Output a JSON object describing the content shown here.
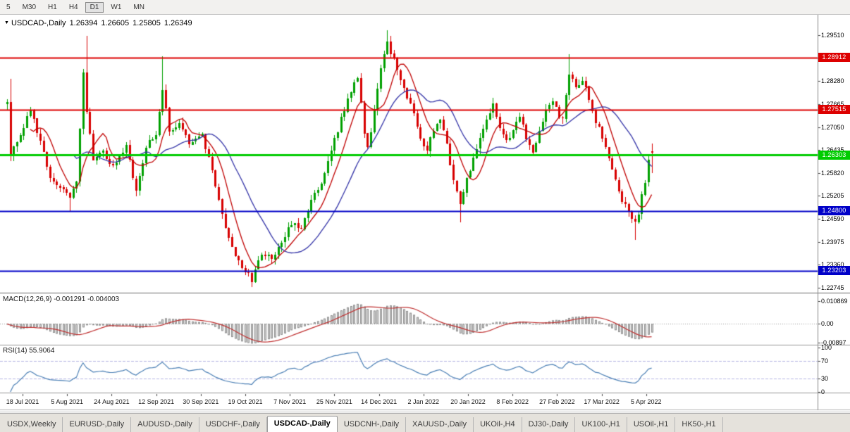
{
  "toolbar": {
    "timeframes": [
      {
        "label": "5",
        "active": false
      },
      {
        "label": "M30",
        "active": false
      },
      {
        "label": "H1",
        "active": false
      },
      {
        "label": "H4",
        "active": false
      },
      {
        "label": "D1",
        "active": true
      },
      {
        "label": "W1",
        "active": false
      },
      {
        "label": "MN",
        "active": false
      }
    ]
  },
  "icons": {
    "symbol_marker": "▼"
  },
  "chart_header": {
    "title": "USDCAD-,Daily",
    "open": "1.26394",
    "high": "1.26605",
    "low": "1.25805",
    "close": "1.26349"
  },
  "indicators": {
    "macd_label": "MACD(12,26,9) -0.001291 -0.004003",
    "rsi_label": "RSI(14) 55.9064"
  },
  "axes": {
    "price_ticks": [
      "1.29510",
      "1.28895",
      "1.28280",
      "1.27665",
      "1.27050",
      "1.26435",
      "1.25820",
      "1.25205",
      "1.24590",
      "1.23975",
      "1.23360",
      "1.22745"
    ],
    "macd_ticks": [
      "0.010869",
      "0.00",
      "-0.00897"
    ],
    "rsi_ticks": [
      "100",
      "70",
      "30",
      "0"
    ],
    "dates": [
      "18 Jul 2021",
      "5 Aug 2021",
      "24 Aug 2021",
      "12 Sep 2021",
      "30 Sep 2021",
      "19 Oct 2021",
      "7 Nov 2021",
      "25 Nov 2021",
      "14 Dec 2021",
      "2 Jan 2022",
      "20 Jan 2022",
      "8 Feb 2022",
      "27 Feb 2022",
      "17 Mar 2022",
      "5 Apr 2022"
    ]
  },
  "levels": [
    {
      "price": 1.28912,
      "label": "1.28912",
      "color": "#dd0000",
      "width": 2
    },
    {
      "price": 1.27515,
      "label": "1.27515",
      "color": "#dd0000",
      "width": 2
    },
    {
      "price": 1.26303,
      "label": "1.26303",
      "color": "#00cc00",
      "width": 3
    },
    {
      "price": 1.248,
      "label": "1.24800",
      "color": "#0000c8",
      "width": 2
    },
    {
      "price": 1.23203,
      "label": "1.23203",
      "color": "#0000c8",
      "width": 2
    }
  ],
  "tabs": [
    {
      "label": "USDX,Weekly",
      "active": false
    },
    {
      "label": "EURUSD-,Daily",
      "active": false
    },
    {
      "label": "AUDUSD-,Daily",
      "active": false
    },
    {
      "label": "USDCHF-,Daily",
      "active": false
    },
    {
      "label": "USDCAD-,Daily",
      "active": true
    },
    {
      "label": "USDCNH-,Daily",
      "active": false
    },
    {
      "label": "XAUUSD-,Daily",
      "active": false
    },
    {
      "label": "UKOil-,H4",
      "active": false
    },
    {
      "label": "DJ30-,Daily",
      "active": false
    },
    {
      "label": "UK100-,H1",
      "active": false
    },
    {
      "label": "USOil-,H1",
      "active": false
    },
    {
      "label": "HK50-,H1",
      "active": false
    }
  ],
  "colors": {
    "up": "#00a000",
    "down": "#d80000",
    "ma_fast": "#c00000",
    "ma_slow": "#3434a8",
    "macd_bar_fill": "#d2d2d2",
    "macd_bar_border": "#8f8f8f",
    "macd_signal": "#c03030",
    "rsi_line": "#4a7fb5",
    "rsi_level": "#b6b6e4"
  },
  "chart_data": {
    "type": "candlestick",
    "symbol": "USDCAD",
    "timeframe": "Daily",
    "title": "USDCAD-,Daily",
    "ylim": [
      1.2261,
      1.3008
    ],
    "candle_count": 196,
    "close_anchors": [
      [
        0,
        1.277
      ],
      [
        1,
        1.2625
      ],
      [
        4,
        1.269
      ],
      [
        7,
        1.275
      ],
      [
        10,
        1.2665
      ],
      [
        13,
        1.257
      ],
      [
        16,
        1.2545
      ],
      [
        19,
        1.252
      ],
      [
        21,
        1.256
      ],
      [
        23,
        1.285
      ],
      [
        24,
        1.275
      ],
      [
        26,
        1.262
      ],
      [
        29,
        1.2645
      ],
      [
        31,
        1.26
      ],
      [
        33,
        1.2615
      ],
      [
        36,
        1.2655
      ],
      [
        39,
        1.253
      ],
      [
        42,
        1.265
      ],
      [
        45,
        1.269
      ],
      [
        47,
        1.281
      ],
      [
        49,
        1.269
      ],
      [
        52,
        1.272
      ],
      [
        55,
        1.2655
      ],
      [
        59,
        1.268
      ],
      [
        62,
        1.259
      ],
      [
        65,
        1.247
      ],
      [
        68,
        1.2385
      ],
      [
        71,
        1.233
      ],
      [
        74,
        1.2295
      ],
      [
        77,
        1.237
      ],
      [
        80,
        1.235
      ],
      [
        83,
        1.239
      ],
      [
        86,
        1.245
      ],
      [
        89,
        1.244
      ],
      [
        92,
        1.2505
      ],
      [
        95,
        1.256
      ],
      [
        98,
        1.264
      ],
      [
        101,
        1.2725
      ],
      [
        104,
        1.2805
      ],
      [
        106,
        1.284
      ],
      [
        108,
        1.269
      ],
      [
        109,
        1.2645
      ],
      [
        111,
        1.275
      ],
      [
        113,
        1.286
      ],
      [
        115,
        1.293
      ],
      [
        117,
        1.288
      ],
      [
        119,
        1.283
      ],
      [
        121,
        1.279
      ],
      [
        123,
        1.274
      ],
      [
        125,
        1.268
      ],
      [
        127,
        1.264
      ],
      [
        129,
        1.27
      ],
      [
        131,
        1.2725
      ],
      [
        133,
        1.266
      ],
      [
        135,
        1.256
      ],
      [
        137,
        1.2505
      ],
      [
        139,
        1.257
      ],
      [
        141,
        1.2615
      ],
      [
        143,
        1.268
      ],
      [
        145,
        1.272
      ],
      [
        147,
        1.277
      ],
      [
        149,
        1.27
      ],
      [
        151,
        1.2665
      ],
      [
        153,
        1.27
      ],
      [
        155,
        1.273
      ],
      [
        157,
        1.268
      ],
      [
        159,
        1.264
      ],
      [
        161,
        1.27
      ],
      [
        163,
        1.275
      ],
      [
        165,
        1.277
      ],
      [
        166,
        1.2755
      ],
      [
        168,
        1.272
      ],
      [
        170,
        1.285
      ],
      [
        172,
        1.281
      ],
      [
        174,
        1.283
      ],
      [
        176,
        1.278
      ],
      [
        178,
        1.272
      ],
      [
        180,
        1.268
      ],
      [
        182,
        1.262
      ],
      [
        184,
        1.256
      ],
      [
        186,
        1.251
      ],
      [
        188,
        1.248
      ],
      [
        190,
        1.245
      ],
      [
        191,
        1.2475
      ],
      [
        192,
        1.252
      ],
      [
        193,
        1.256
      ],
      [
        194,
        1.261
      ],
      [
        195,
        1.26349
      ]
    ],
    "wick_highs": [
      [
        1,
        1.2835
      ],
      [
        24,
        1.2949
      ],
      [
        47,
        1.2895
      ],
      [
        115,
        1.2964
      ],
      [
        170,
        1.29
      ]
    ],
    "wick_lows": [
      [
        19,
        1.2478
      ],
      [
        74,
        1.2288
      ],
      [
        137,
        1.245
      ],
      [
        190,
        1.2403
      ]
    ],
    "last_candle": {
      "o": 1.26394,
      "h": 1.26605,
      "l": 1.25805,
      "c": 1.26349
    },
    "overlays": [
      {
        "name": "MA-fast",
        "type": "sma",
        "period": 8
      },
      {
        "name": "MA-slow",
        "type": "sma",
        "period": 21
      }
    ],
    "macd": {
      "fast": 12,
      "slow": 26,
      "signal": 9,
      "current": -0.001291,
      "current_signal": -0.004003,
      "scale_top": 0.010869,
      "scale_bottom": -0.00897
    },
    "rsi": {
      "period": 14,
      "current": 55.9064,
      "levels": [
        70,
        30
      ],
      "scale": [
        0,
        100
      ]
    }
  }
}
